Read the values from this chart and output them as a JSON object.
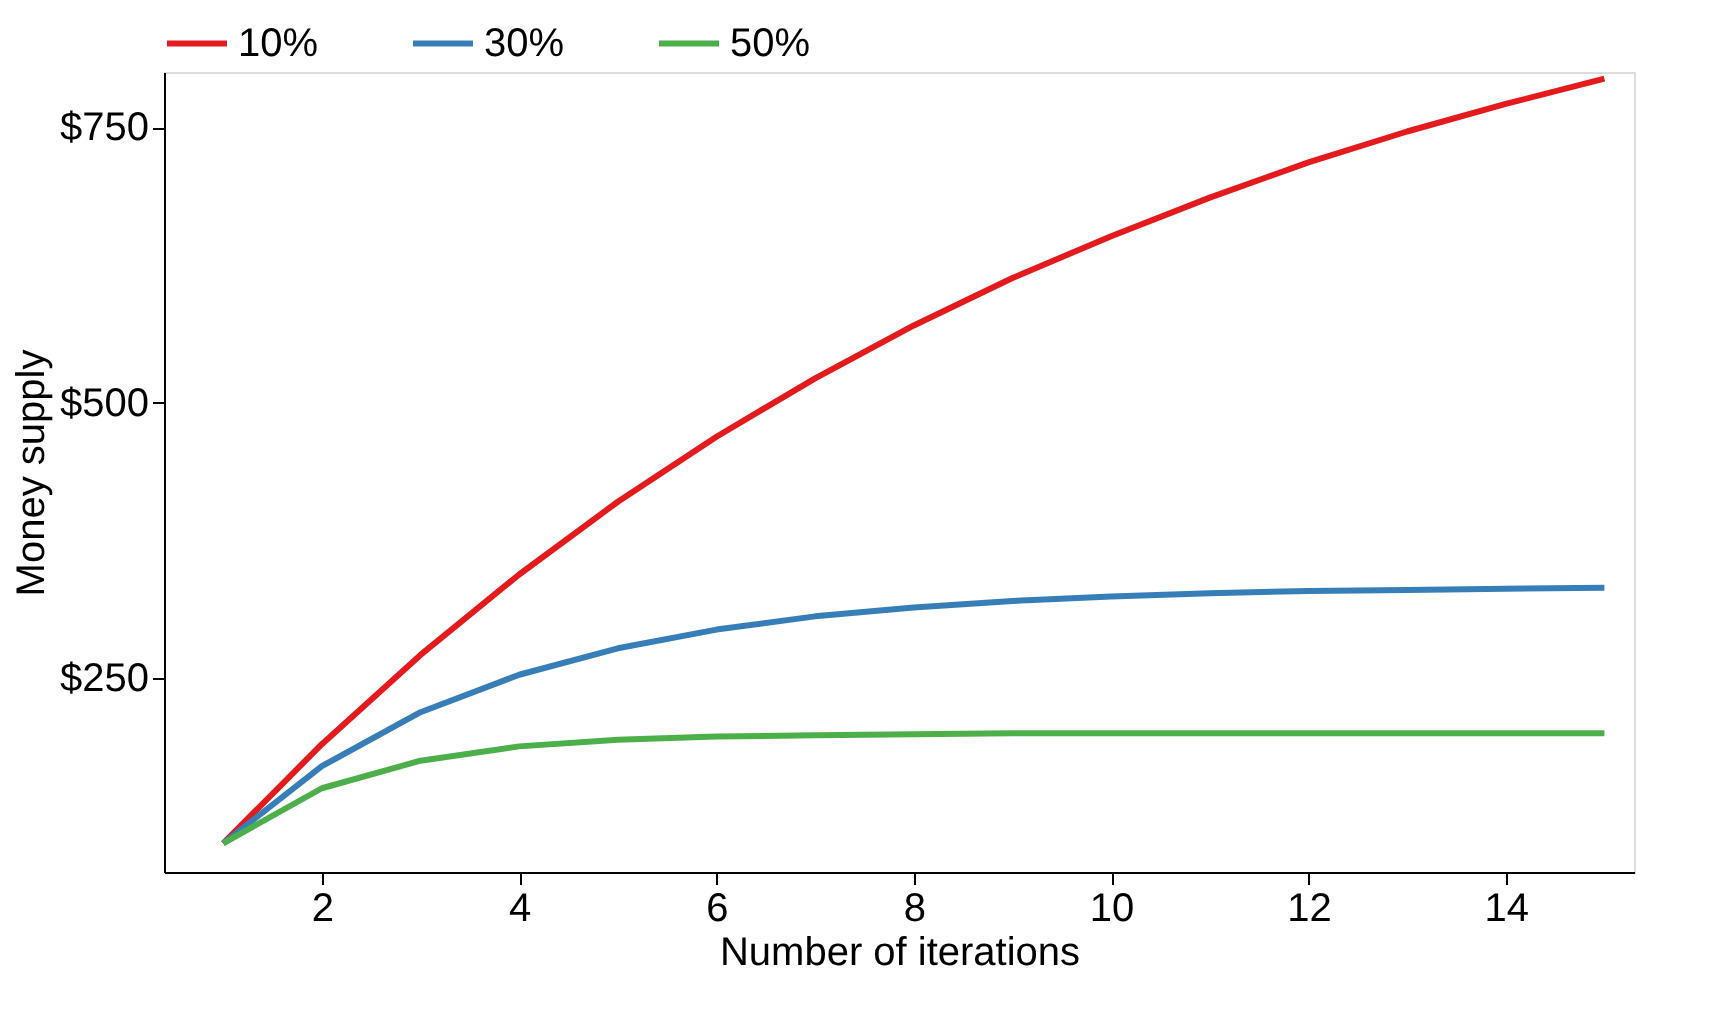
{
  "chart_data": {
    "type": "line",
    "xlabel": "Number of iterations",
    "ylabel": "Money supply",
    "x": [
      1,
      2,
      3,
      4,
      5,
      6,
      7,
      8,
      9,
      10,
      11,
      12,
      13,
      14,
      15
    ],
    "series": [
      {
        "name": "10%",
        "color": "#e41a1c",
        "values": [
          100,
          190,
          271,
          344,
          410,
          469,
          522,
          570,
          613,
          651,
          686,
          718,
          746,
          771,
          794
        ]
      },
      {
        "name": "30%",
        "color": "#377eb8",
        "values": [
          100,
          170,
          219,
          253,
          277,
          294,
          306,
          314,
          320,
          324,
          327,
          329,
          330,
          331,
          332
        ]
      },
      {
        "name": "50%",
        "color": "#4daf4a",
        "values": [
          100,
          150,
          175,
          188,
          194,
          197,
          198,
          199,
          200,
          200,
          200,
          200,
          200,
          200,
          200
        ]
      }
    ],
    "xlim": [
      0.4,
      15.3
    ],
    "ylim": [
      74,
      800
    ],
    "xticks": [
      2,
      4,
      6,
      8,
      10,
      12,
      14
    ],
    "yticks": [
      {
        "value": 250,
        "label": "$250"
      },
      {
        "value": 500,
        "label": "$500"
      },
      {
        "value": 750,
        "label": "$750"
      }
    ],
    "grid": false,
    "legend": "top",
    "marker": "none",
    "line_style": "solid"
  }
}
